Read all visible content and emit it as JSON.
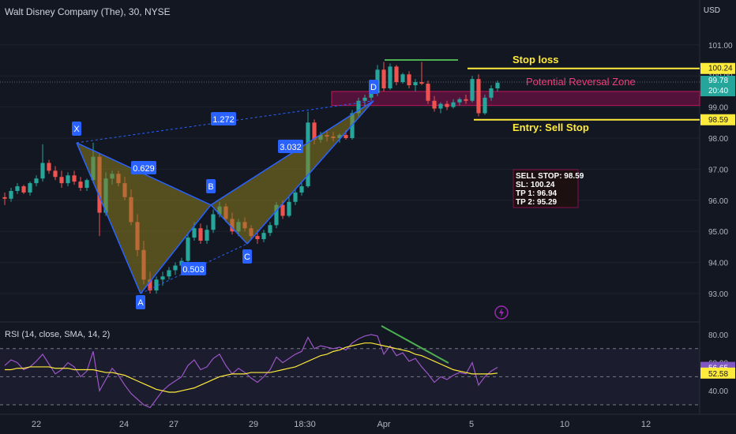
{
  "header": {
    "title": "Walt Disney Company (The), 30, NYSE",
    "currency": "USD"
  },
  "rsi": {
    "title": "RSI (14, close, SMA, 14, 2)"
  },
  "chart_data": {
    "type": "candlestick",
    "price_axis": {
      "ticks": [
        101.0,
        100.0,
        99.0,
        98.0,
        97.0,
        96.0,
        95.0,
        94.0,
        93.0
      ],
      "ylim": [
        92.5,
        101.5
      ]
    },
    "rsi_axis": {
      "ticks": [
        80.0,
        60.0,
        40.0
      ],
      "upper_band": 70,
      "lower_band": 30,
      "mid_band": 50
    },
    "x_ticks": [
      "22",
      "24",
      "27",
      "29",
      "18:30",
      "Apr",
      "5",
      "10",
      "12"
    ],
    "price_labels": {
      "stop": "100.24",
      "last": "99.78",
      "countdown": "20:40",
      "entry": "98.59"
    },
    "rsi_labels": {
      "rsi": "56.65",
      "sma": "52.58"
    },
    "pattern_points": [
      {
        "label": "X",
        "price": 97.85
      },
      {
        "label": "A",
        "price": 93.0
      },
      {
        "label": "B",
        "price": 95.85
      },
      {
        "label": "C",
        "price": 94.6
      },
      {
        "label": "D",
        "price": 99.2
      }
    ],
    "ratios": {
      "xb": "0.629",
      "ac": "0.503",
      "bd": "3.032",
      "xd": "1.272"
    },
    "annotations": {
      "stop_loss": "Stop loss",
      "prz": "Potential Reversal Zone",
      "entry": "Entry: Sell Stop",
      "box": [
        "SELL STOP: 98.59",
        "SL: 100.24",
        "TP 1: 96.94",
        "TP 2: 95.29"
      ]
    },
    "levels": {
      "stop_loss": 100.24,
      "entry": 98.59,
      "prz_top": 99.5,
      "prz_bottom": 99.05
    },
    "ohlc": [
      [
        96.1,
        96.25,
        95.85,
        96.05
      ],
      [
        96.05,
        96.4,
        95.95,
        96.3
      ],
      [
        96.3,
        96.55,
        96.2,
        96.45
      ],
      [
        96.45,
        96.5,
        96.2,
        96.25
      ],
      [
        96.25,
        96.6,
        96.15,
        96.55
      ],
      [
        96.55,
        96.8,
        96.45,
        96.7
      ],
      [
        96.7,
        97.8,
        96.6,
        97.2
      ],
      [
        97.2,
        97.3,
        96.85,
        96.95
      ],
      [
        96.95,
        97.1,
        96.65,
        96.75
      ],
      [
        96.75,
        96.95,
        96.4,
        96.55
      ],
      [
        96.55,
        96.9,
        96.45,
        96.8
      ],
      [
        96.8,
        96.95,
        96.5,
        96.6
      ],
      [
        96.6,
        96.75,
        96.3,
        96.4
      ],
      [
        96.4,
        96.7,
        96.3,
        96.65
      ],
      [
        96.65,
        97.85,
        96.55,
        97.4
      ],
      [
        97.4,
        97.5,
        94.85,
        95.6
      ],
      [
        95.6,
        96.9,
        95.5,
        96.7
      ],
      [
        96.7,
        96.95,
        96.5,
        96.85
      ],
      [
        96.85,
        96.95,
        96.45,
        96.55
      ],
      [
        96.55,
        96.75,
        96.0,
        96.1
      ],
      [
        96.1,
        96.35,
        95.2,
        95.3
      ],
      [
        95.3,
        95.55,
        94.2,
        94.4
      ],
      [
        94.4,
        94.7,
        93.3,
        93.45
      ],
      [
        93.45,
        93.7,
        93.0,
        93.1
      ],
      [
        93.1,
        93.55,
        93.0,
        93.45
      ],
      [
        93.45,
        93.7,
        93.25,
        93.55
      ],
      [
        93.55,
        93.85,
        93.45,
        93.75
      ],
      [
        93.75,
        94.0,
        93.6,
        93.9
      ],
      [
        93.9,
        94.15,
        93.7,
        94.05
      ],
      [
        94.05,
        94.95,
        93.95,
        94.8
      ],
      [
        94.8,
        95.3,
        94.7,
        95.1
      ],
      [
        95.1,
        95.25,
        94.6,
        94.7
      ],
      [
        94.7,
        95.2,
        94.6,
        95.05
      ],
      [
        95.05,
        95.7,
        94.95,
        95.55
      ],
      [
        95.55,
        95.95,
        95.45,
        95.8
      ],
      [
        95.8,
        95.9,
        95.3,
        95.4
      ],
      [
        95.4,
        95.6,
        94.9,
        95.0
      ],
      [
        95.0,
        95.4,
        94.85,
        95.3
      ],
      [
        95.3,
        95.45,
        95.0,
        95.1
      ],
      [
        95.1,
        95.2,
        94.75,
        94.85
      ],
      [
        94.85,
        95.05,
        94.6,
        94.75
      ],
      [
        94.75,
        95.05,
        94.65,
        94.95
      ],
      [
        94.95,
        95.3,
        94.85,
        95.2
      ],
      [
        95.2,
        95.95,
        95.1,
        95.85
      ],
      [
        95.85,
        96.0,
        95.4,
        95.5
      ],
      [
        95.5,
        96.1,
        95.45,
        95.95
      ],
      [
        95.95,
        96.35,
        95.85,
        96.25
      ],
      [
        96.25,
        96.55,
        96.15,
        96.45
      ],
      [
        96.45,
        98.85,
        96.4,
        98.5
      ],
      [
        98.5,
        98.6,
        97.8,
        97.95
      ],
      [
        97.95,
        98.2,
        97.85,
        98.1
      ],
      [
        98.1,
        98.25,
        97.9,
        98.05
      ],
      [
        98.05,
        98.2,
        97.9,
        98.0
      ],
      [
        98.0,
        98.15,
        97.85,
        98.1
      ],
      [
        98.1,
        98.25,
        97.95,
        98.0
      ],
      [
        98.0,
        98.9,
        97.95,
        98.8
      ],
      [
        98.8,
        99.3,
        98.7,
        99.2
      ],
      [
        99.2,
        99.4,
        99.0,
        99.3
      ],
      [
        99.3,
        99.55,
        99.2,
        99.45
      ],
      [
        99.45,
        100.35,
        99.35,
        100.2
      ],
      [
        100.2,
        100.45,
        99.5,
        99.6
      ],
      [
        99.6,
        100.4,
        99.55,
        100.3
      ],
      [
        100.3,
        100.35,
        99.7,
        99.8
      ],
      [
        99.8,
        100.1,
        99.75,
        100.05
      ],
      [
        100.05,
        100.15,
        99.6,
        99.7
      ],
      [
        99.7,
        99.9,
        99.5,
        99.8
      ],
      [
        99.8,
        100.45,
        99.7,
        99.75
      ],
      [
        99.75,
        99.85,
        99.1,
        99.2
      ],
      [
        99.2,
        99.35,
        98.85,
        98.95
      ],
      [
        98.95,
        99.15,
        98.8,
        99.1
      ],
      [
        99.1,
        99.2,
        98.9,
        99.0
      ],
      [
        99.0,
        99.25,
        98.95,
        99.15
      ],
      [
        99.15,
        99.3,
        99.05,
        99.25
      ],
      [
        99.25,
        99.4,
        99.1,
        99.2
      ],
      [
        99.2,
        100.0,
        99.15,
        99.9
      ],
      [
        99.9,
        100.05,
        98.7,
        98.8
      ],
      [
        98.8,
        99.4,
        98.75,
        99.3
      ],
      [
        99.3,
        99.7,
        99.2,
        99.6
      ],
      [
        99.6,
        99.85,
        99.5,
        99.78
      ]
    ],
    "rsi_values": [
      58,
      62,
      60,
      55,
      57,
      61,
      66,
      59,
      52,
      55,
      60,
      57,
      50,
      54,
      68,
      40,
      48,
      56,
      51,
      44,
      38,
      34,
      30,
      28,
      34,
      40,
      44,
      47,
      50,
      58,
      62,
      55,
      57,
      63,
      66,
      58,
      52,
      56,
      53,
      49,
      46,
      50,
      55,
      64,
      60,
      63,
      66,
      68,
      78,
      70,
      72,
      71,
      70,
      71,
      69,
      74,
      77,
      79,
      80,
      79,
      66,
      72,
      65,
      67,
      61,
      63,
      57,
      52,
      46,
      50,
      48,
      51,
      53,
      52,
      60,
      44,
      50,
      54,
      56.65
    ],
    "rsi_sma": [
      55,
      55,
      56,
      56,
      57,
      57,
      57,
      57,
      56,
      56,
      56,
      55,
      55,
      55,
      55,
      54,
      53,
      53,
      52,
      51,
      49,
      47,
      45,
      43,
      41,
      40,
      39,
      39,
      40,
      41,
      42,
      44,
      46,
      48,
      50,
      51,
      52,
      52,
      52,
      53,
      53,
      53,
      53,
      54,
      55,
      56,
      57,
      59,
      61,
      63,
      65,
      66,
      68,
      69,
      71,
      72,
      73,
      74,
      74,
      73,
      72,
      71,
      70,
      69,
      68,
      66,
      65,
      63,
      61,
      59,
      57,
      55,
      54,
      53,
      52,
      52,
      52,
      52,
      52.58
    ]
  },
  "colors": {
    "bg": "#131722",
    "up": "#26a69a",
    "down": "#ef5350",
    "pattern": "#2962ff",
    "pattern_fill": "#8d7d1f",
    "stop_line": "#ffeb3b",
    "prz_fill": "#880e4f",
    "trend_line": "#4caf50",
    "rsi_line": "#9c55c7",
    "rsi_sma": "#ffeb3b"
  }
}
